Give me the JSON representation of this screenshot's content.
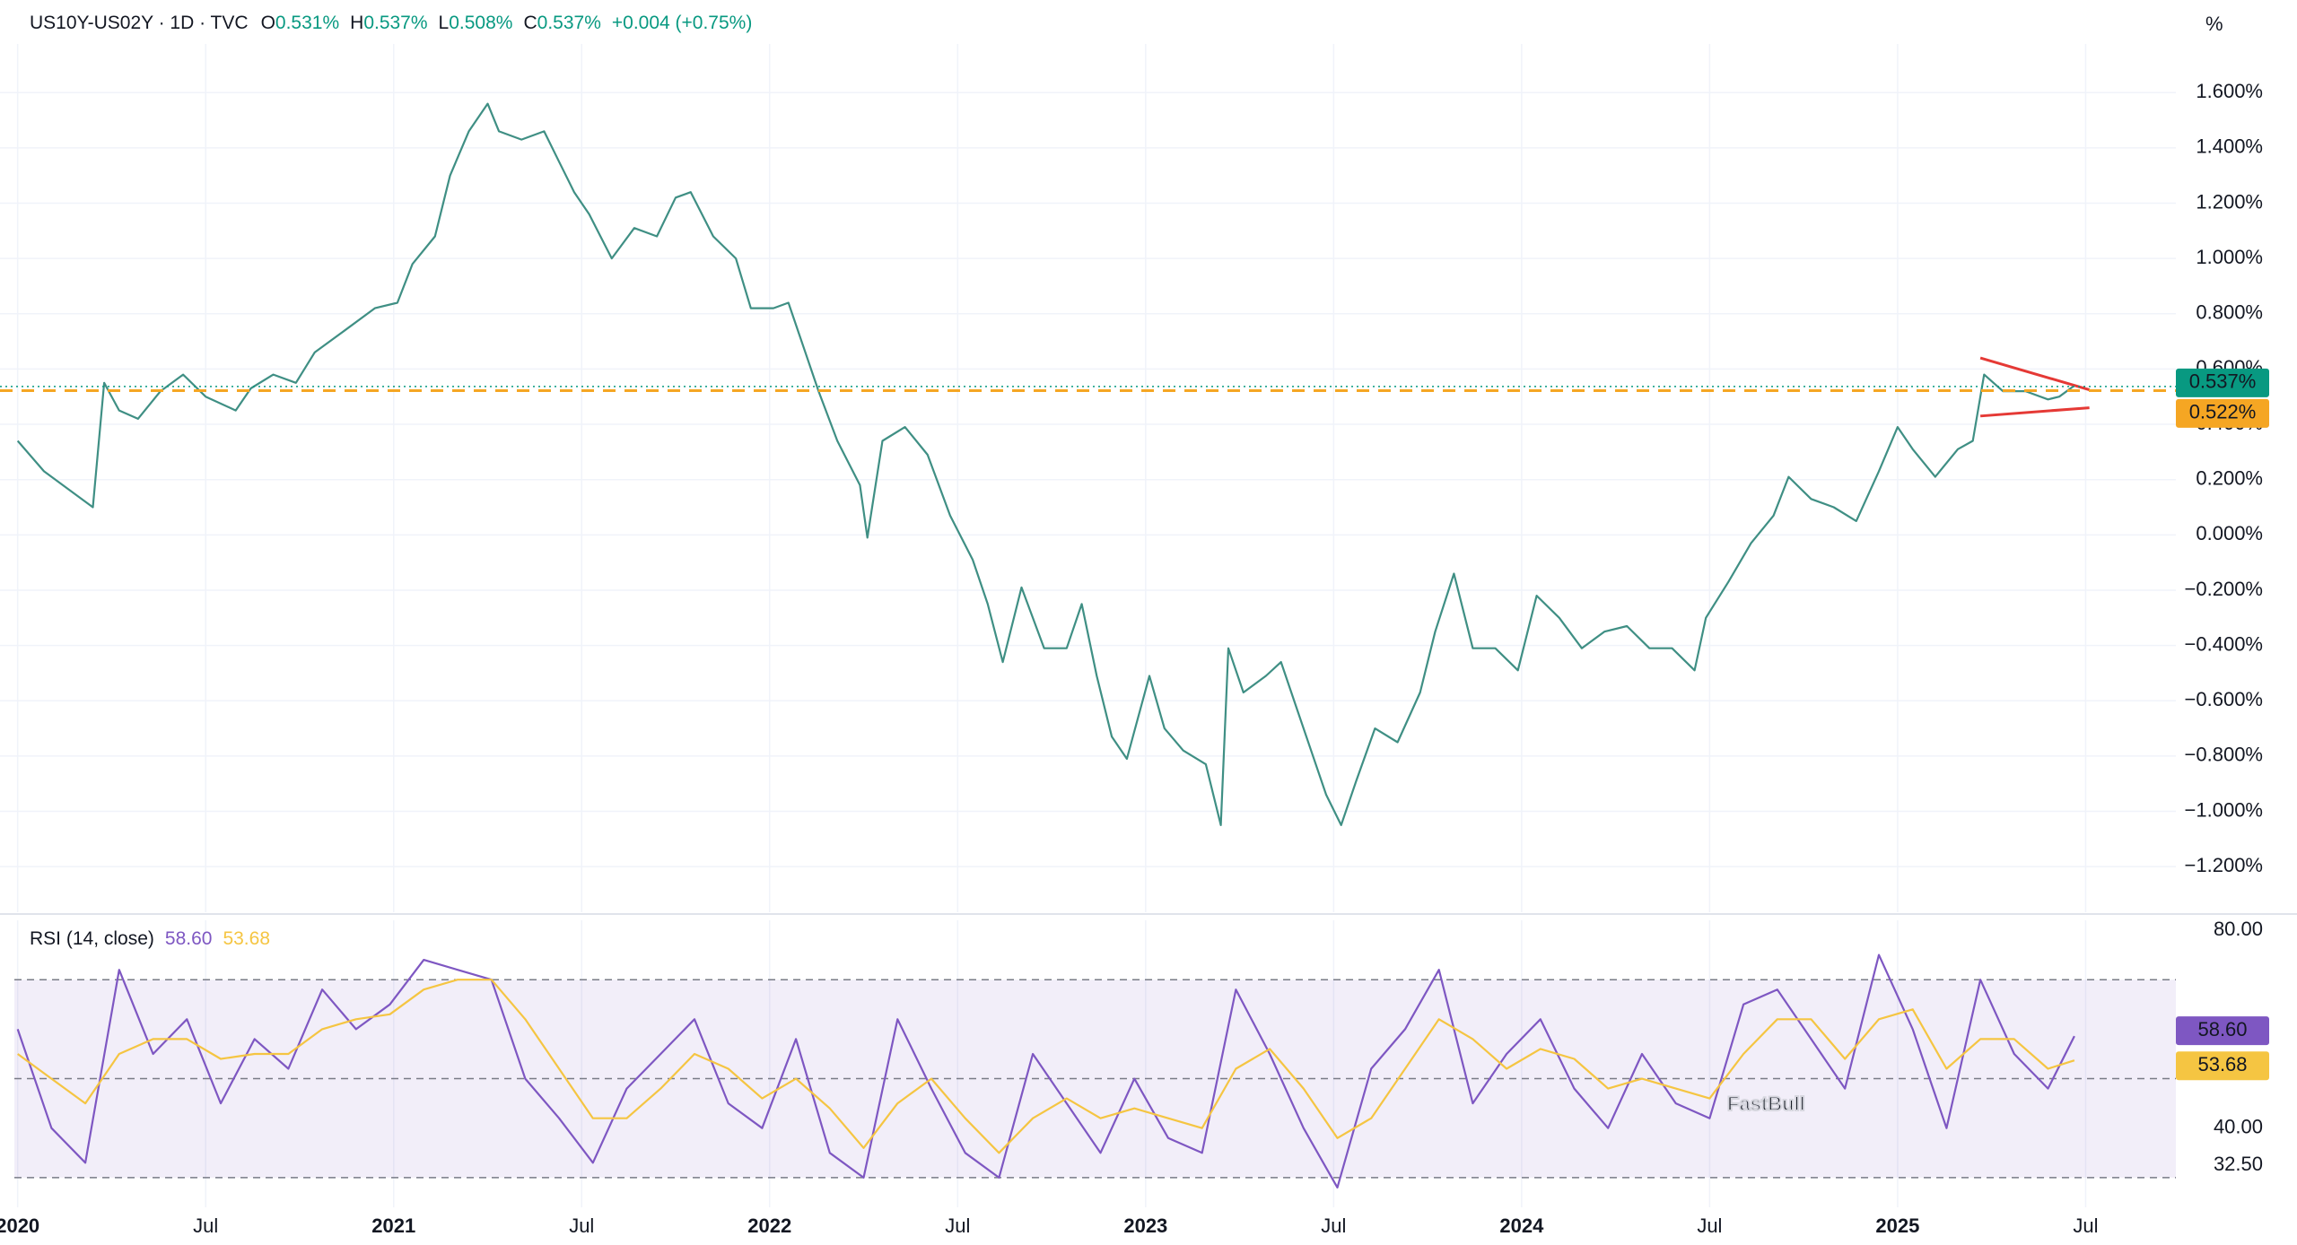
{
  "chart_data": [
    {
      "type": "line",
      "header": {
        "symbol": "US10Y-US02Y · 1D · TVC",
        "o": "O",
        "open": "0.531%",
        "h": "H",
        "high": "0.537%",
        "l": "L",
        "low": "0.508%",
        "c": "C",
        "close": "0.537%",
        "change": "+0.004 (+0.75%)",
        "up_color": "#089981"
      },
      "unit": "%",
      "xlim": [
        2019.953,
        2025.74
      ],
      "ylim": [
        -1.365,
        1.776
      ],
      "yticks": [
        {
          "value": -1.2,
          "label": "−1.200%"
        },
        {
          "value": -1.0,
          "label": "−1.000%"
        },
        {
          "value": -0.8,
          "label": "−0.800%"
        },
        {
          "value": -0.6,
          "label": "−0.600%"
        },
        {
          "value": -0.4,
          "label": "−0.400%"
        },
        {
          "value": -0.2,
          "label": "−0.200%"
        },
        {
          "value": 0,
          "label": "0.000%"
        },
        {
          "value": 0.2,
          "label": "0.200%"
        },
        {
          "value": 0.4,
          "label": "0.400%"
        },
        {
          "value": 0.6,
          "label": "0.600%"
        },
        {
          "value": 0.8,
          "label": "0.800%"
        },
        {
          "value": 1.0,
          "label": "1.000%"
        },
        {
          "value": 1.2,
          "label": "1.200%"
        },
        {
          "value": 1.4,
          "label": "1.400%"
        },
        {
          "value": 1.6,
          "label": "1.600%"
        }
      ],
      "grid": true,
      "x": [
        2020.0,
        2020.07,
        2020.15,
        2020.2,
        2020.23,
        2020.27,
        2020.32,
        2020.38,
        2020.44,
        2020.5,
        2020.58,
        2020.62,
        2020.68,
        2020.74,
        2020.79,
        2020.87,
        2020.95,
        2021.01,
        2021.05,
        2021.11,
        2021.15,
        2021.2,
        2021.25,
        2021.28,
        2021.34,
        2021.4,
        2021.44,
        2021.48,
        2021.52,
        2021.58,
        2021.64,
        2021.7,
        2021.75,
        2021.79,
        2021.85,
        2021.91,
        2021.95,
        2022.01,
        2022.05,
        2022.09,
        2022.13,
        2022.18,
        2022.24,
        2022.26,
        2022.3,
        2022.36,
        2022.42,
        2022.48,
        2022.54,
        2022.58,
        2022.62,
        2022.67,
        2022.73,
        2022.79,
        2022.83,
        2022.87,
        2022.91,
        2022.95,
        2023.01,
        2023.05,
        2023.1,
        2023.16,
        2023.2,
        2023.22,
        2023.26,
        2023.32,
        2023.36,
        2023.4,
        2023.44,
        2023.48,
        2023.52,
        2023.56,
        2023.61,
        2023.67,
        2023.73,
        2023.77,
        2023.82,
        2023.87,
        2023.93,
        2023.99,
        2024.04,
        2024.1,
        2024.16,
        2024.22,
        2024.28,
        2024.34,
        2024.4,
        2024.46,
        2024.49,
        2024.55,
        2024.61,
        2024.67,
        2024.71,
        2024.77,
        2024.83,
        2024.89,
        2024.95,
        2025.0,
        2025.04,
        2025.1,
        2025.16,
        2025.2,
        2025.23,
        2025.28,
        2025.34,
        2025.4,
        2025.43,
        2025.47
      ],
      "series": [
        {
          "color": "#3f8f84",
          "values": [
            0.34,
            0.23,
            0.15,
            0.1,
            0.55,
            0.45,
            0.42,
            0.52,
            0.58,
            0.5,
            0.45,
            0.53,
            0.58,
            0.55,
            0.66,
            0.74,
            0.82,
            0.84,
            0.98,
            1.08,
            1.3,
            1.46,
            1.56,
            1.46,
            1.43,
            1.46,
            1.35,
            1.24,
            1.16,
            1.0,
            1.11,
            1.08,
            1.22,
            1.24,
            1.08,
            1.0,
            0.82,
            0.82,
            0.84,
            0.68,
            0.52,
            0.34,
            0.18,
            -0.01,
            0.34,
            0.39,
            0.29,
            0.07,
            -0.09,
            -0.25,
            -0.46,
            -0.19,
            -0.41,
            -0.41,
            -0.25,
            -0.51,
            -0.73,
            -0.81,
            -0.51,
            -0.7,
            -0.78,
            -0.83,
            -1.05,
            -0.41,
            -0.57,
            -0.51,
            -0.46,
            -0.62,
            -0.78,
            -0.94,
            -1.05,
            -0.89,
            -0.7,
            -0.75,
            -0.57,
            -0.35,
            -0.14,
            -0.41,
            -0.41,
            -0.49,
            -0.22,
            -0.3,
            -0.41,
            -0.35,
            -0.33,
            -0.41,
            -0.41,
            -0.49,
            -0.3,
            -0.17,
            -0.03,
            0.07,
            0.21,
            0.13,
            0.1,
            0.05,
            0.23,
            0.39,
            0.31,
            0.21,
            0.31,
            0.34,
            0.58,
            0.52,
            0.52,
            0.49,
            0.5,
            0.54
          ]
        }
      ],
      "last_price": {
        "value": 0.537,
        "label": "0.537%",
        "color": "#089981"
      },
      "level": {
        "value": 0.522,
        "label": "0.522%",
        "color": "#f5a623"
      },
      "trendlines": [
        {
          "color": "#e53935",
          "x": [
            2025.22,
            2025.51
          ],
          "y": [
            0.64,
            0.525
          ]
        },
        {
          "color": "#e53935",
          "x": [
            2025.22,
            2025.51
          ],
          "y": [
            0.43,
            0.46
          ]
        }
      ]
    },
    {
      "type": "line",
      "title": "RSI (14, close)",
      "xlim": [
        2019.953,
        2025.74
      ],
      "ylim": [
        24,
        82
      ],
      "yticks": [
        {
          "value": 80,
          "label": "80.00"
        },
        {
          "value": 40,
          "label": "40.00"
        },
        {
          "value": 32.5,
          "label": "32.50"
        }
      ],
      "bands": [
        70,
        50,
        30
      ],
      "xticks": [
        2020,
        {
          "value": 2020.5,
          "label": "Jul"
        },
        2021,
        {
          "value": 2021.5,
          "label": "Jul"
        },
        2022,
        {
          "value": 2022.5,
          "label": "Jul"
        },
        2023,
        {
          "value": 2023.5,
          "label": "Jul"
        },
        2024,
        {
          "value": 2024.5,
          "label": "Jul"
        },
        2025,
        {
          "value": 2025.5,
          "label": "Jul"
        }
      ],
      "x": [
        2020.0,
        2020.09,
        2020.18,
        2020.27,
        2020.36,
        2020.45,
        2020.54,
        2020.63,
        2020.72,
        2020.81,
        2020.9,
        2020.99,
        2021.08,
        2021.17,
        2021.26,
        2021.35,
        2021.44,
        2021.53,
        2021.62,
        2021.71,
        2021.8,
        2021.89,
        2021.98,
        2022.07,
        2022.16,
        2022.25,
        2022.34,
        2022.43,
        2022.52,
        2022.61,
        2022.7,
        2022.79,
        2022.88,
        2022.97,
        2023.06,
        2023.15,
        2023.24,
        2023.33,
        2023.42,
        2023.51,
        2023.6,
        2023.69,
        2023.78,
        2023.87,
        2023.96,
        2024.05,
        2024.14,
        2024.23,
        2024.32,
        2024.41,
        2024.5,
        2024.59,
        2024.68,
        2024.77,
        2024.86,
        2024.95,
        2025.04,
        2025.13,
        2025.22,
        2025.31,
        2025.4,
        2025.47
      ],
      "series": [
        {
          "name": "58.60",
          "color": "#7e57c2",
          "price_label": "58.60",
          "values": [
            60,
            40,
            33,
            72,
            55,
            62,
            45,
            58,
            52,
            68,
            60,
            65,
            74,
            72,
            70,
            50,
            42,
            33,
            48,
            55,
            62,
            45,
            40,
            58,
            35,
            30,
            62,
            48,
            35,
            30,
            55,
            45,
            35,
            50,
            38,
            35,
            68,
            55,
            40,
            28,
            52,
            60,
            72,
            45,
            55,
            62,
            48,
            40,
            55,
            45,
            42,
            65,
            68,
            58,
            48,
            75,
            60,
            40,
            70,
            55,
            48,
            58.6
          ]
        },
        {
          "name": "53.68",
          "color": "#f5c542",
          "price_label": "53.68",
          "values": [
            55,
            50,
            45,
            55,
            58,
            58,
            54,
            55,
            55,
            60,
            62,
            63,
            68,
            70,
            70,
            62,
            52,
            42,
            42,
            48,
            55,
            52,
            46,
            50,
            44,
            36,
            45,
            50,
            42,
            35,
            42,
            46,
            42,
            44,
            42,
            40,
            52,
            56,
            48,
            38,
            42,
            52,
            62,
            58,
            52,
            56,
            54,
            48,
            50,
            48,
            46,
            55,
            62,
            62,
            54,
            62,
            64,
            52,
            58,
            58,
            52,
            53.68
          ]
        }
      ],
      "watermark": "FastBull"
    }
  ]
}
